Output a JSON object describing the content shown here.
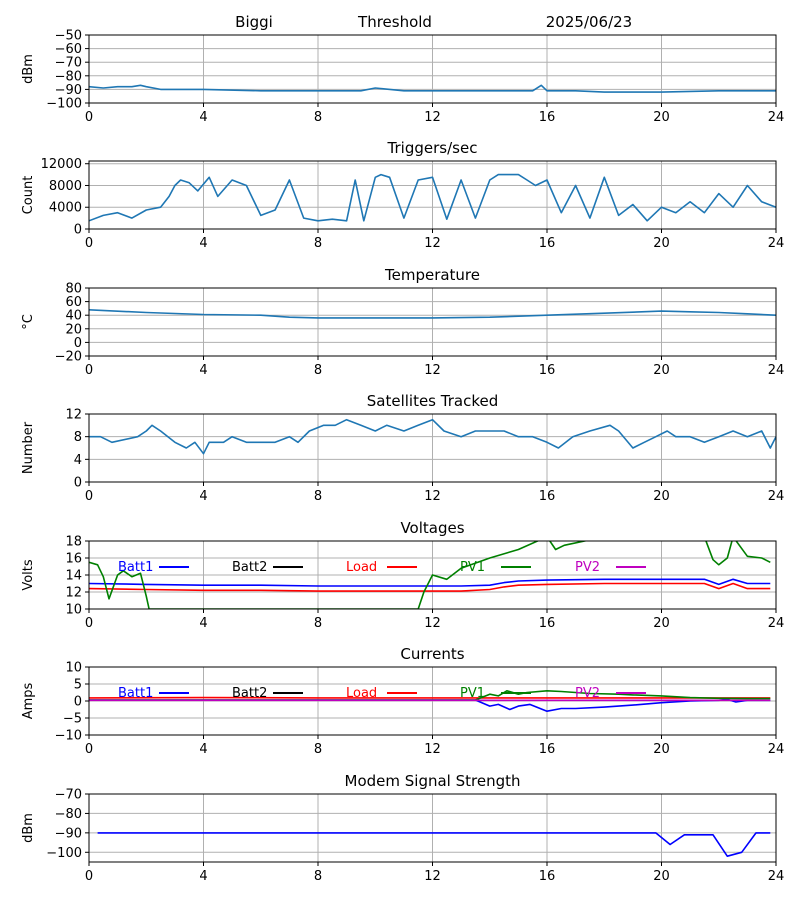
{
  "header": {
    "station": "Biggi",
    "mode": "Threshold",
    "date": "2025/06/23"
  },
  "colors": {
    "series_default": "#1f77b4",
    "grid": "#b0b0b0",
    "batt1": "#0000ff",
    "batt2": "#000000",
    "load": "#ff0000",
    "pv1": "#008000",
    "pv2": "#bf00bf"
  },
  "chart_data": [
    {
      "id": "threshold",
      "type": "line",
      "title": "",
      "xlabel": "",
      "ylabel": "dBm",
      "xlim": [
        0,
        24
      ],
      "ylim": [
        -100,
        -50
      ],
      "xticks": [
        0,
        4,
        8,
        12,
        16,
        20,
        24
      ],
      "yticks": [
        -100,
        -90,
        -80,
        -70,
        -60,
        -50
      ],
      "grid": true,
      "series": [
        {
          "color": "#1f77b4",
          "x": [
            0,
            0.5,
            1,
            1.5,
            1.8,
            2,
            2.5,
            3,
            4,
            6,
            7,
            8,
            9.5,
            10,
            11,
            12,
            14,
            15,
            15.5,
            15.8,
            16,
            17,
            18,
            20,
            22,
            24
          ],
          "y": [
            -88,
            -89,
            -88,
            -88,
            -87,
            -88,
            -90,
            -90,
            -90,
            -91,
            -91,
            -91,
            -91,
            -89,
            -91,
            -91,
            -91,
            -91,
            -91,
            -87,
            -91,
            -91,
            -92,
            -92,
            -91,
            -91
          ]
        }
      ]
    },
    {
      "id": "triggers",
      "type": "line",
      "title": "Triggers/sec",
      "xlabel": "",
      "ylabel": "Count",
      "xlim": [
        0,
        24
      ],
      "ylim": [
        0,
        12500
      ],
      "xticks": [
        0,
        4,
        8,
        12,
        16,
        20,
        24
      ],
      "yticks": [
        0,
        4000,
        8000,
        12000
      ],
      "grid": true,
      "series": [
        {
          "color": "#1f77b4",
          "x": [
            0,
            0.5,
            1,
            1.5,
            2,
            2.5,
            2.8,
            3.0,
            3.2,
            3.5,
            3.8,
            4.2,
            4.5,
            5,
            5.5,
            6,
            6.5,
            7,
            7.5,
            8,
            8.5,
            9,
            9.3,
            9.6,
            10,
            10.2,
            10.5,
            11,
            11.5,
            12,
            12.5,
            13,
            13.5,
            14,
            14.3,
            14.6,
            15,
            15.3,
            15.6,
            16,
            16.5,
            17,
            17.5,
            18,
            18.5,
            19,
            19.5,
            20,
            20.5,
            21,
            21.5,
            22,
            22.5,
            23,
            23.5,
            24
          ],
          "y": [
            1500,
            2500,
            3000,
            2000,
            3500,
            4000,
            6000,
            8000,
            9000,
            8500,
            7000,
            9500,
            6000,
            9000,
            8000,
            2500,
            3500,
            9000,
            2000,
            1500,
            1800,
            1500,
            9000,
            1500,
            9500,
            10000,
            9500,
            2000,
            9000,
            9500,
            1800,
            9000,
            2000,
            9000,
            10000,
            10000,
            10000,
            9000,
            8000,
            9000,
            3000,
            8000,
            2000,
            9500,
            2500,
            4500,
            1500,
            4000,
            3000,
            5000,
            3000,
            6500,
            4000,
            8000,
            5000,
            4000
          ]
        }
      ]
    },
    {
      "id": "temperature",
      "type": "line",
      "title": "Temperature",
      "xlabel": "",
      "ylabel": "°C",
      "xlim": [
        0,
        24
      ],
      "ylim": [
        -20,
        80
      ],
      "xticks": [
        0,
        4,
        8,
        12,
        16,
        20,
        24
      ],
      "yticks": [
        -20,
        0,
        20,
        40,
        60,
        80
      ],
      "grid": true,
      "series": [
        {
          "color": "#1f77b4",
          "x": [
            0,
            2,
            4,
            6,
            7,
            8,
            10,
            12,
            14,
            16,
            18,
            20,
            21,
            22,
            23,
            24
          ],
          "y": [
            48,
            44,
            41,
            40,
            37,
            36,
            36,
            36,
            37,
            40,
            43,
            46,
            45,
            44,
            42,
            40
          ]
        }
      ]
    },
    {
      "id": "satellites",
      "type": "line",
      "title": "Satellites Tracked",
      "xlabel": "",
      "ylabel": "Number",
      "xlim": [
        0,
        24
      ],
      "ylim": [
        0,
        12
      ],
      "xticks": [
        0,
        4,
        8,
        12,
        16,
        20,
        24
      ],
      "yticks": [
        0,
        4,
        8,
        12
      ],
      "grid": true,
      "series": [
        {
          "color": "#1f77b4",
          "x": [
            0,
            0.4,
            0.8,
            1.7,
            2.0,
            2.2,
            2.5,
            3.0,
            3.4,
            3.7,
            4.0,
            4.2,
            4.7,
            5.0,
            5.5,
            6.5,
            7.0,
            7.3,
            7.7,
            8.2,
            8.6,
            9.0,
            9.5,
            10.0,
            10.4,
            11.0,
            11.5,
            12.0,
            12.4,
            13.0,
            13.5,
            14.5,
            15.0,
            15.5,
            16.0,
            16.4,
            16.9,
            17.5,
            18.2,
            18.5,
            19.0,
            19.4,
            19.8,
            20.2,
            20.5,
            21.0,
            21.5,
            22.0,
            22.5,
            23.0,
            23.5,
            23.8,
            24
          ],
          "y": [
            8,
            8,
            7,
            8,
            9,
            10,
            9,
            7,
            6,
            7,
            5,
            7,
            7,
            8,
            7,
            7,
            8,
            7,
            9,
            10,
            10,
            11,
            10,
            9,
            10,
            9,
            10,
            11,
            9,
            8,
            9,
            9,
            8,
            8,
            7,
            6,
            8,
            9,
            10,
            9,
            6,
            7,
            8,
            9,
            8,
            8,
            7,
            8,
            9,
            8,
            9,
            6,
            8
          ]
        }
      ]
    },
    {
      "id": "voltages",
      "type": "line",
      "title": "Voltages",
      "xlabel": "",
      "ylabel": "Volts",
      "xlim": [
        0,
        24
      ],
      "ylim": [
        10,
        18
      ],
      "xticks": [
        0,
        4,
        8,
        12,
        16,
        20,
        24
      ],
      "yticks": [
        10,
        12,
        14,
        16,
        18
      ],
      "grid": true,
      "legend": "top",
      "series": [
        {
          "name": "Batt1",
          "color": "#0000ff",
          "x": [
            0,
            2,
            4,
            6,
            8,
            10,
            12,
            13,
            14,
            14.5,
            15,
            16,
            18,
            20,
            21.5,
            22,
            22.5,
            23,
            23.8
          ],
          "y": [
            13,
            12.9,
            12.8,
            12.8,
            12.7,
            12.7,
            12.7,
            12.7,
            12.8,
            13.1,
            13.3,
            13.4,
            13.5,
            13.5,
            13.5,
            12.9,
            13.5,
            13.0,
            13.0
          ]
        },
        {
          "name": "Batt2",
          "color": "#000000",
          "x": [],
          "y": []
        },
        {
          "name": "Load",
          "color": "#ff0000",
          "x": [
            0,
            2,
            4,
            6,
            8,
            10,
            12,
            13,
            14,
            14.5,
            15,
            16,
            18,
            20,
            21.5,
            22,
            22.5,
            23,
            23.8
          ],
          "y": [
            12.4,
            12.3,
            12.2,
            12.2,
            12.1,
            12.1,
            12.1,
            12.1,
            12.3,
            12.6,
            12.8,
            12.9,
            13.0,
            13.0,
            13.0,
            12.4,
            13.0,
            12.4,
            12.4
          ]
        },
        {
          "name": "PV1",
          "color": "#008000",
          "x": [
            0,
            0.3,
            0.5,
            0.7,
            1.0,
            1.2,
            1.5,
            1.8,
            2.0,
            2.1,
            11.5,
            11.7,
            12.0,
            12.5,
            13.0,
            14.0,
            15.0,
            16.0,
            16.3,
            16.6,
            18.0,
            20.0,
            21.5,
            21.8,
            22.0,
            22.3,
            22.5,
            23.0,
            23.5,
            23.8
          ],
          "y": [
            15.5,
            15.2,
            13.8,
            11.2,
            14.0,
            14.5,
            13.8,
            14.2,
            11.5,
            10.0,
            10.0,
            12.0,
            14.0,
            13.5,
            14.8,
            16.0,
            17.0,
            18.5,
            17.0,
            17.5,
            18.5,
            18.5,
            18.5,
            15.8,
            15.2,
            16.0,
            18.5,
            16.2,
            16.0,
            15.5
          ]
        },
        {
          "name": "PV2",
          "color": "#bf00bf",
          "x": [],
          "y": []
        }
      ]
    },
    {
      "id": "currents",
      "type": "line",
      "title": "Currents",
      "xlabel": "",
      "ylabel": "Amps",
      "xlim": [
        0,
        24
      ],
      "ylim": [
        -10,
        10
      ],
      "xticks": [
        0,
        4,
        8,
        12,
        16,
        20,
        24
      ],
      "yticks": [
        -10,
        -5,
        0,
        5,
        10
      ],
      "grid": true,
      "legend": "top",
      "series": [
        {
          "name": "Batt1",
          "color": "#0000ff",
          "x": [
            0,
            4,
            8,
            12,
            13.5,
            14,
            14.3,
            14.7,
            15.0,
            15.4,
            16.0,
            16.5,
            17.0,
            18.0,
            19.0,
            20.0,
            21.0,
            22.0,
            22.3,
            22.6,
            23.0,
            23.8
          ],
          "y": [
            0.3,
            0.3,
            0.3,
            0.3,
            0.3,
            -1.5,
            -1.0,
            -2.5,
            -1.5,
            -1.0,
            -3.0,
            -2.2,
            -2.2,
            -1.8,
            -1.2,
            -0.5,
            0,
            0.2,
            0.5,
            -0.3,
            0.2,
            0.2
          ]
        },
        {
          "name": "Batt2",
          "color": "#000000",
          "x": [],
          "y": []
        },
        {
          "name": "Load",
          "color": "#ff0000",
          "x": [
            0,
            4,
            8,
            12,
            16,
            20,
            22,
            23.8
          ],
          "y": [
            0.9,
            1.0,
            0.9,
            0.9,
            0.9,
            0.9,
            0.9,
            0.9
          ]
        },
        {
          "name": "PV1",
          "color": "#008000",
          "x": [
            0,
            4,
            8,
            12,
            13.5,
            14,
            14.3,
            14.6,
            15.0,
            15.3,
            16.0,
            16.5,
            17.5,
            18.5,
            19.0,
            20.0,
            21.0,
            22.0,
            23.0,
            23.8
          ],
          "y": [
            0.3,
            0.3,
            0.3,
            0.3,
            0.3,
            2.0,
            1.5,
            3.0,
            2.0,
            2.5,
            3.0,
            2.8,
            2.2,
            2.0,
            1.8,
            1.5,
            1.0,
            0.8,
            0.7,
            0.7
          ]
        },
        {
          "name": "PV2",
          "color": "#bf00bf",
          "x": [
            0,
            4,
            8,
            12,
            16,
            20,
            23.8
          ],
          "y": [
            0.2,
            0.2,
            0.2,
            0.2,
            0.2,
            0.2,
            0.2
          ]
        }
      ]
    },
    {
      "id": "modem",
      "type": "line",
      "title": "Modem Signal Strength",
      "xlabel": "",
      "ylabel": "dBm",
      "xlim": [
        0,
        24
      ],
      "ylim": [
        -105,
        -70
      ],
      "xticks": [
        0,
        4,
        8,
        12,
        16,
        20,
        24
      ],
      "yticks": [
        -100,
        -90,
        -80,
        -70
      ],
      "grid": true,
      "series": [
        {
          "color": "#0000ff",
          "x": [
            0.3,
            4,
            8,
            12,
            16,
            19.8,
            20.3,
            20.8,
            21.3,
            21.8,
            22.3,
            22.8,
            23.3,
            23.8
          ],
          "y": [
            -90,
            -90,
            -90,
            -90,
            -90,
            -90,
            -96,
            -91,
            -91,
            -91,
            -102,
            -100,
            -90,
            -90
          ]
        }
      ]
    }
  ]
}
